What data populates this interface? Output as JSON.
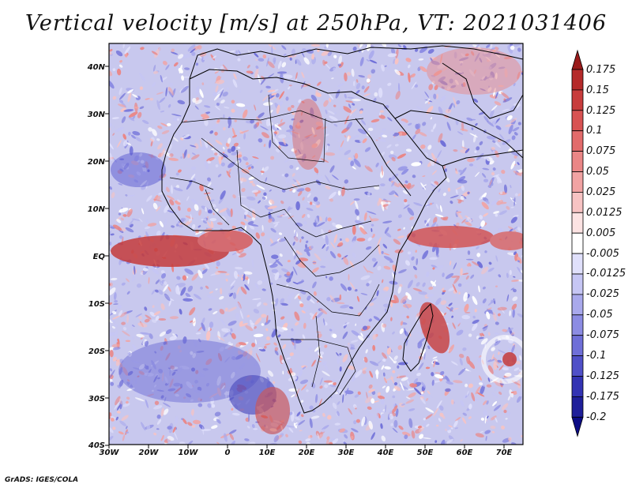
{
  "title": "Vertical velocity [m/s] at 250hPa, VT: 2021031406",
  "credit": "GrADS: IGES/COLA",
  "map": {
    "lat_labels": [
      "40N",
      "30N",
      "20N",
      "10N",
      "EQ",
      "10S",
      "20S",
      "30S",
      "40S"
    ],
    "lon_labels": [
      "30W",
      "20W",
      "10W",
      "0",
      "10E",
      "20E",
      "30E",
      "40E",
      "50E",
      "60E",
      "70E"
    ],
    "lat_range": [
      -40,
      44
    ],
    "lon_range": [
      -30,
      75
    ]
  },
  "colorbar": {
    "labels": [
      "0.175",
      "0.15",
      "0.125",
      "0.1",
      "0.075",
      "0.05",
      "0.025",
      "0.0125",
      "0.005",
      "-0.005",
      "-0.0125",
      "-0.025",
      "-0.05",
      "-0.075",
      "-0.1",
      "-0.125",
      "-0.175",
      "-0.2"
    ],
    "colors": [
      "#9a1b1b",
      "#b52a2a",
      "#c83c3c",
      "#d85252",
      "#e26b6b",
      "#ea8686",
      "#f1a3a3",
      "#f7c3c3",
      "#fce3e3",
      "#ffffff",
      "#e0e0fb",
      "#c6c6f4",
      "#a9a9ec",
      "#8c8ce3",
      "#6f6fd8",
      "#5050c8",
      "#3333b3",
      "#1f1f9a",
      "#0c0c85"
    ]
  }
}
